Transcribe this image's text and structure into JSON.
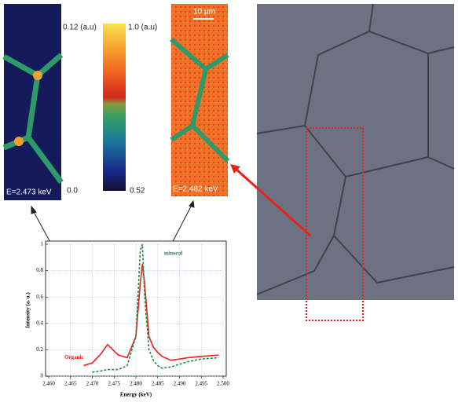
{
  "panels": {
    "left_map_energy": "E=2.473 keV",
    "right_map_energy": "E=2.482 keV",
    "scale_bar": "10 µm",
    "left_scale_max": "0.12 (a.u)",
    "left_scale_min": "0.0",
    "right_scale_max": "1.0 (a.u)",
    "right_scale_min": "0.52"
  },
  "chart_data": {
    "type": "line",
    "x_label": "Energy (keV)",
    "y_label": "Intensity (a. u.)",
    "x": [
      2.468,
      2.47,
      2.472,
      2.4735,
      2.475,
      2.476,
      2.478,
      2.48,
      2.481,
      2.4815,
      2.482,
      2.483,
      2.484,
      2.485,
      2.486,
      2.488,
      2.49,
      2.492,
      2.495,
      2.499
    ],
    "series": [
      {
        "name": "Organic",
        "color": "#e8231b",
        "dash": false,
        "values": [
          0.08,
          0.1,
          0.17,
          0.24,
          0.19,
          0.16,
          0.14,
          0.3,
          0.7,
          0.85,
          0.7,
          0.3,
          0.22,
          0.18,
          0.15,
          0.12,
          0.13,
          0.14,
          0.15,
          0.16
        ]
      },
      {
        "name": "mineral",
        "color": "#1a8a4a",
        "dash": true,
        "values": [
          null,
          0.03,
          0.04,
          0.05,
          0.05,
          0.05,
          0.08,
          0.3,
          0.95,
          1.0,
          0.6,
          0.2,
          0.12,
          0.08,
          0.06,
          0.07,
          0.09,
          0.11,
          0.13,
          0.14
        ]
      }
    ],
    "xlim": [
      2.46,
      2.5
    ],
    "xticks": [
      {
        "value": 2.46,
        "label": "2.460"
      },
      {
        "value": 2.465,
        "label": "2.465"
      },
      {
        "value": 2.47,
        "label": "2.470"
      },
      {
        "value": 2.475,
        "label": "2.475"
      },
      {
        "value": 2.48,
        "label": "2.480"
      },
      {
        "value": 2.485,
        "label": "2.485"
      },
      {
        "value": 2.49,
        "label": "2.490"
      },
      {
        "value": 2.495,
        "label": "2.495"
      },
      {
        "value": 2.5,
        "label": "2.500"
      }
    ],
    "ylim": [
      0,
      1
    ],
    "yticks": [
      0,
      0.2,
      0.4,
      0.6,
      0.8,
      1
    ],
    "grid": true
  }
}
